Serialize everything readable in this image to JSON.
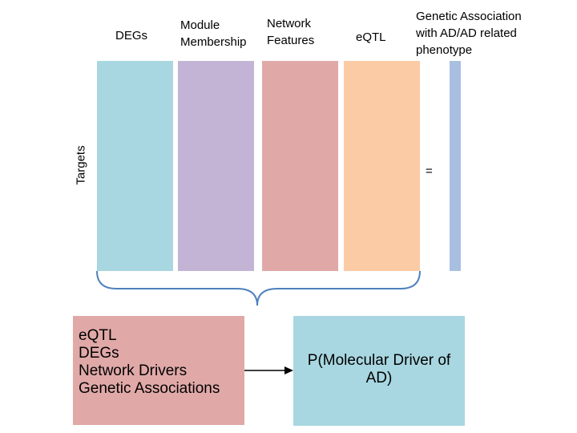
{
  "columns": [
    {
      "label": "DEGs",
      "color": "#a8d7e1"
    },
    {
      "label": "Module\nMembership",
      "color": "#c3b3d5"
    },
    {
      "label": "Network\nFeatures",
      "color": "#e0a9a8"
    },
    {
      "label": "eQTL",
      "color": "#fbcba5"
    }
  ],
  "result": {
    "label": "Genetic Association\nwith AD/AD related\n phenotype",
    "color": "#a9bfe1"
  },
  "equals_sign": "=",
  "rows_label": "Targets",
  "bracket_color": "#4f81bd",
  "input_box": {
    "lines": [
      "eQTL",
      "DEGs",
      "Network Drivers",
      "Genetic Associations"
    ],
    "color": "#e0a9a8"
  },
  "output_box": {
    "label": "P(Molecular Driver of\nAD)",
    "color": "#a8d7e1"
  }
}
